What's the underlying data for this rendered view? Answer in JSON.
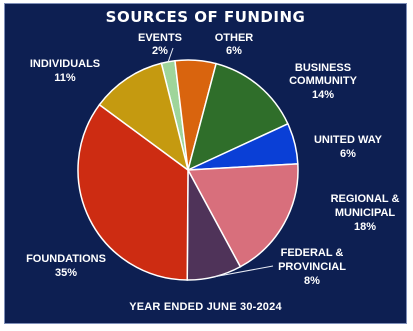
{
  "chart_data": {
    "type": "pie",
    "title": "SOURCES OF FUNDING",
    "footer": "YEAR ENDED JUNE 30-2024",
    "slices": [
      {
        "label": "EVENTS",
        "value_label": "2%",
        "value": 2,
        "color": "#9fd59a"
      },
      {
        "label": "OTHER",
        "value_label": "6%",
        "value": 6,
        "color": "#d9640e"
      },
      {
        "label": "BUSINESS COMMUNITY",
        "value_label": "14%",
        "value": 14,
        "color": "#2f6e2a"
      },
      {
        "label": "UNITED WAY",
        "value_label": "6%",
        "value": 6,
        "color": "#0a3fd6"
      },
      {
        "label": "REGIONAL & MUNICIPAL",
        "value_label": "18%",
        "value": 18,
        "color": "#d86f7c"
      },
      {
        "label": "FEDERAL & PROVINCIAL",
        "value_label": "8%",
        "value": 8,
        "color": "#4f3359"
      },
      {
        "label": "FOUNDATIONS",
        "value_label": "35%",
        "value": 35,
        "color": "#cd2c12"
      },
      {
        "label": "INDIVIDUALS",
        "value_label": "11%",
        "value": 11,
        "color": "#c59a10"
      }
    ]
  }
}
